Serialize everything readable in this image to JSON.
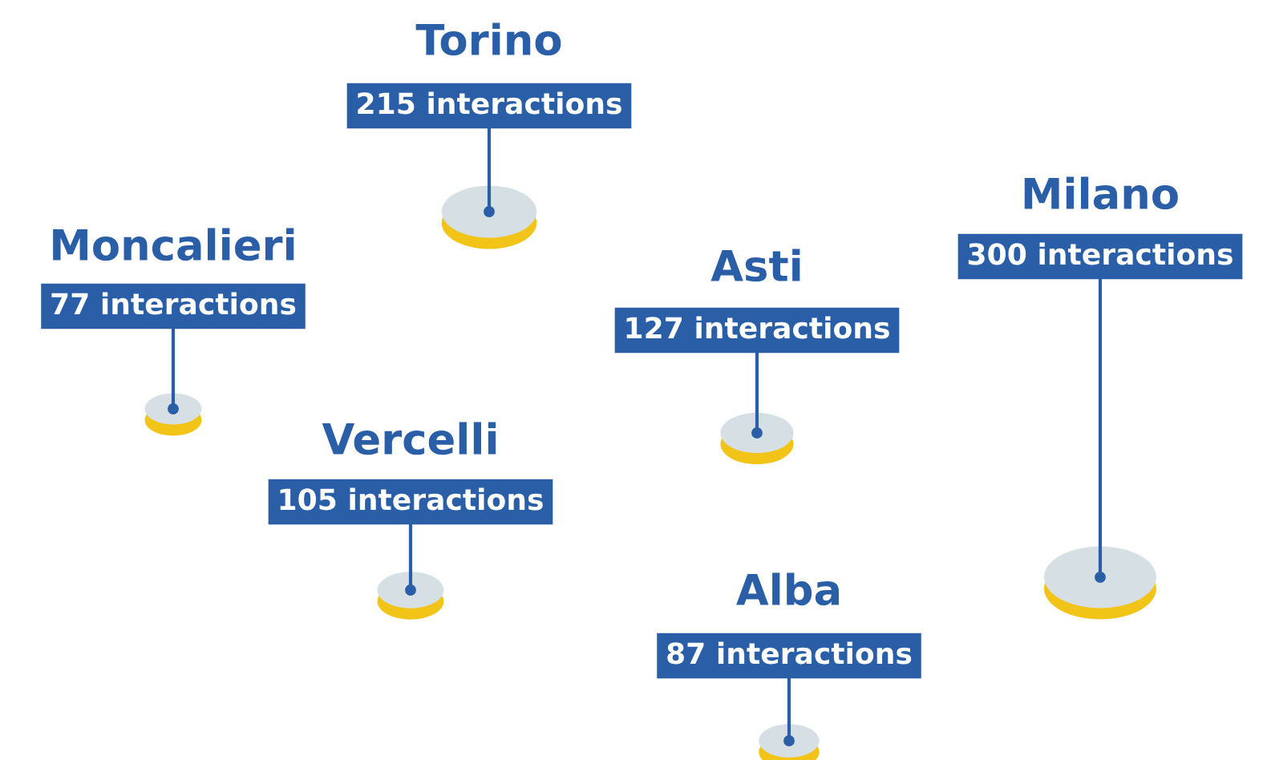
{
  "chart_data": {
    "type": "other",
    "categories": [
      "Torino",
      "Moncalieri",
      "Milano",
      "Asti",
      "Vercelli",
      "Alba"
    ],
    "values": [
      215,
      77,
      300,
      127,
      105,
      87
    ],
    "value_labels": [
      "215 interactions",
      "77 interactions",
      "300 interactions",
      "127 interactions",
      "105 interactions",
      "87 interactions"
    ]
  }
}
